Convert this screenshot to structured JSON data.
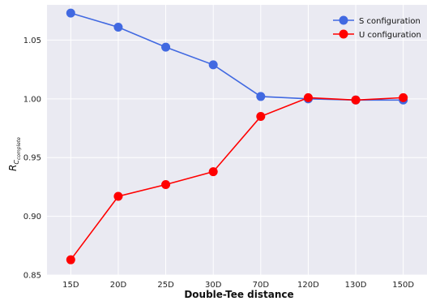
{
  "chart_data": {
    "type": "line",
    "title": "",
    "xlabel": "Double-Tee distance",
    "ylabel_main": "R",
    "ylabel_sub": "C",
    "ylabel_subsub": "complete",
    "categories": [
      "15D",
      "20D",
      "25D",
      "30D",
      "70D",
      "120D",
      "130D",
      "150D"
    ],
    "ylim": [
      0.85,
      1.08
    ],
    "yticks": [
      "0.85",
      "0.90",
      "0.95",
      "1.00",
      "1.05"
    ],
    "ytick_values": [
      0.85,
      0.9,
      0.95,
      1.0,
      1.05
    ],
    "grid": true,
    "legend_position": "top-right",
    "series": [
      {
        "name": "S configuration",
        "color": "#4169E1",
        "values": [
          1.073,
          1.061,
          1.044,
          1.029,
          1.002,
          1.0,
          0.999,
          0.999
        ]
      },
      {
        "name": "U configuration",
        "color": "#FF0000",
        "values": [
          0.863,
          0.917,
          0.927,
          0.938,
          0.985,
          1.001,
          0.999,
          1.001
        ]
      }
    ]
  }
}
